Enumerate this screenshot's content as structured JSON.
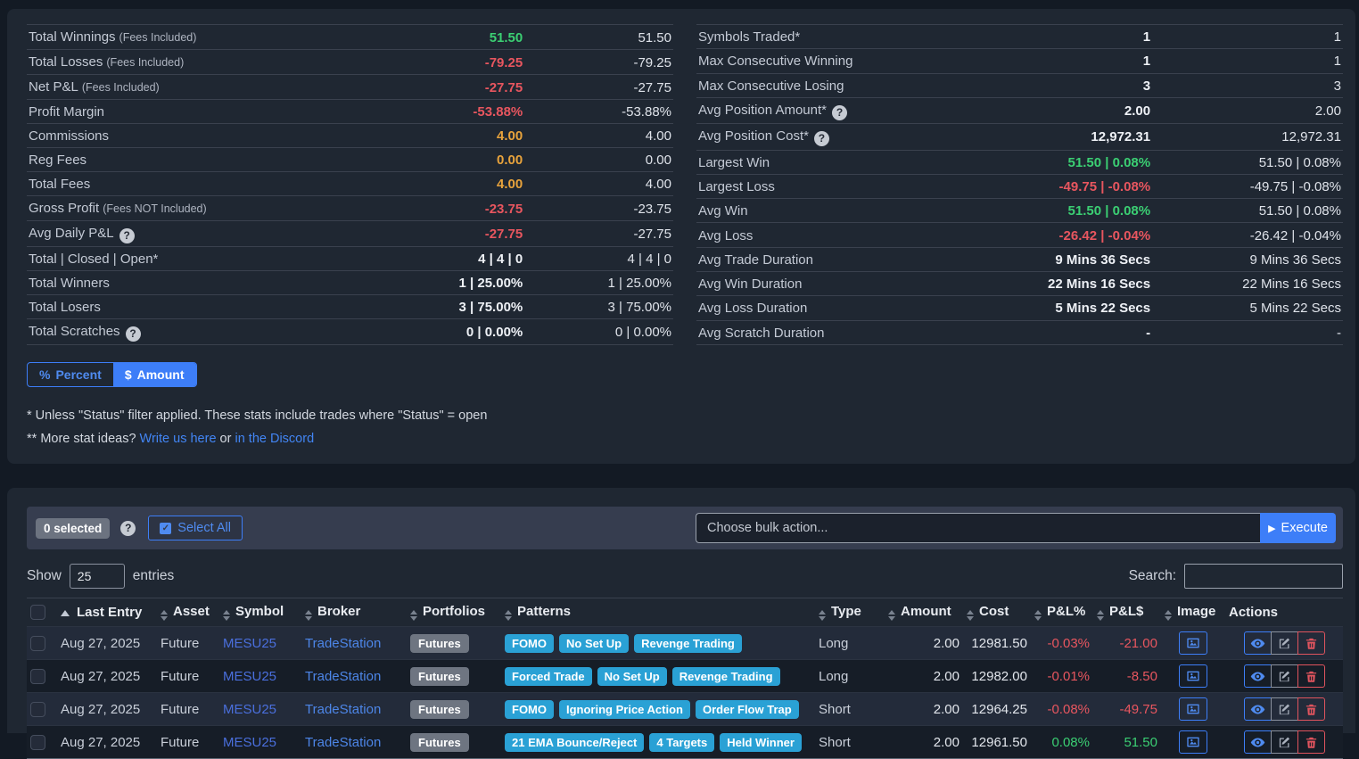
{
  "colors": {
    "green": "#3bcf73",
    "red": "#e8565f",
    "orange": "#e8a33c",
    "accent_blue": "#3d7ef8",
    "pattern_badge_blue": "#2aa1d5",
    "link_blue": "#4285f4",
    "portfolio_badge_gray": "#6e7581"
  },
  "stats": {
    "left": [
      {
        "label": "Total Winnings",
        "note": "(Fees Included)",
        "v1": "51.50",
        "v2": "51.50",
        "cls": "green"
      },
      {
        "label": "Total Losses",
        "note": "(Fees Included)",
        "v1": "-79.25",
        "v2": "-79.25",
        "cls": "red"
      },
      {
        "label": "Net P&L",
        "note": "(Fees Included)",
        "v1": "-27.75",
        "v2": "-27.75",
        "cls": "red"
      },
      {
        "label": "Profit Margin",
        "v1": "-53.88%",
        "v2": "-53.88%",
        "cls": "red"
      },
      {
        "label": "Commissions",
        "v1": "4.00",
        "v2": "4.00",
        "cls": "orange"
      },
      {
        "label": "Reg Fees",
        "v1": "0.00",
        "v2": "0.00",
        "cls": "orange"
      },
      {
        "label": "Total Fees",
        "v1": "4.00",
        "v2": "4.00",
        "cls": "orange"
      },
      {
        "label": "Gross Profit",
        "note": "(Fees NOT Included)",
        "v1": "-23.75",
        "v2": "-23.75",
        "cls": "red"
      },
      {
        "label": "Avg Daily P&L",
        "help": true,
        "v1": "-27.75",
        "v2": "-27.75",
        "cls": "red"
      },
      {
        "label": "Total | Closed | Open*",
        "v1": "4 | 4 | 0",
        "v2": "4 | 4 | 0",
        "cls": "plain"
      },
      {
        "label": "Total Winners",
        "v1": "1 | 25.00%",
        "v2": "1 | 25.00%",
        "cls": "plain"
      },
      {
        "label": "Total Losers",
        "v1": "3 | 75.00%",
        "v2": "3 | 75.00%",
        "cls": "plain"
      },
      {
        "label": "Total Scratches",
        "help": true,
        "v1": "0 | 0.00%",
        "v2": "0 | 0.00%",
        "cls": "plain"
      }
    ],
    "right": [
      {
        "label": "Symbols Traded*",
        "v1": "1",
        "v2": "1",
        "cls": "plain"
      },
      {
        "label": "Max Consecutive Winning",
        "v1": "1",
        "v2": "1",
        "cls": "plain"
      },
      {
        "label": "Max Consecutive Losing",
        "v1": "3",
        "v2": "3",
        "cls": "plain"
      },
      {
        "label": "Avg Position Amount*",
        "help": true,
        "v1": "2.00",
        "v2": "2.00",
        "cls": "plain"
      },
      {
        "label": "Avg Position Cost*",
        "help": true,
        "v1": "12,972.31",
        "v2": "12,972.31",
        "cls": "plain"
      },
      {
        "label": "Largest Win",
        "v1": "51.50 | 0.08%",
        "v2": "51.50 | 0.08%",
        "cls": "green"
      },
      {
        "label": "Largest Loss",
        "v1": "-49.75 | -0.08%",
        "v2": "-49.75 | -0.08%",
        "cls": "red"
      },
      {
        "label": "Avg Win",
        "v1": "51.50 | 0.08%",
        "v2": "51.50 | 0.08%",
        "cls": "green"
      },
      {
        "label": "Avg Loss",
        "v1": "-26.42 | -0.04%",
        "v2": "-26.42 | -0.04%",
        "cls": "red"
      },
      {
        "label": "Avg Trade Duration",
        "v1": "9 Mins 36 Secs",
        "v2": "9 Mins 36 Secs",
        "cls": "plain"
      },
      {
        "label": "Avg Win Duration",
        "v1": "22 Mins 16 Secs",
        "v2": "22 Mins 16 Secs",
        "cls": "plain"
      },
      {
        "label": "Avg Loss Duration",
        "v1": "5 Mins 22 Secs",
        "v2": "5 Mins 22 Secs",
        "cls": "plain"
      },
      {
        "label": "Avg Scratch Duration",
        "v1": "-",
        "v2": "-",
        "cls": "plain"
      }
    ]
  },
  "toggle": {
    "percent_label": "Percent",
    "percent_icon": "%",
    "amount_label": "Amount",
    "amount_icon": "$"
  },
  "footnotes": {
    "line1": "* Unless \"Status\" filter applied. These stats include trades where \"Status\" = open",
    "line2_prefix": "** More stat ideas?",
    "link1": "Write us here",
    "or_text": "or",
    "link2": "in the Discord"
  },
  "bulk": {
    "selected_badge": "0 selected",
    "select_all_label": "Select All",
    "bulk_placeholder": "Choose bulk action...",
    "execute_label": "Execute",
    "execute_icon": "▶"
  },
  "table_controls": {
    "show_label": "Show",
    "page_size": "25",
    "entries_label": "entries",
    "search_label": "Search:",
    "search_value": ""
  },
  "trades_table": {
    "headers": [
      {
        "label": "Last Entry",
        "sort": "asc"
      },
      {
        "label": "Asset",
        "sort": "both"
      },
      {
        "label": "Symbol",
        "sort": "both"
      },
      {
        "label": "Broker",
        "sort": "both"
      },
      {
        "label": "Portfolios",
        "sort": "both"
      },
      {
        "label": "Patterns",
        "sort": "both"
      },
      {
        "label": "Type",
        "sort": "both"
      },
      {
        "label": "Amount",
        "sort": "both",
        "align": "r"
      },
      {
        "label": "Cost",
        "sort": "both",
        "align": "r"
      },
      {
        "label": "P&L%",
        "sort": "both",
        "align": "r"
      },
      {
        "label": "P&L$",
        "sort": "both",
        "align": "r"
      },
      {
        "label": "Image",
        "sort": "both",
        "align": "c"
      },
      {
        "label": "Actions",
        "sort": "none",
        "align": "c"
      }
    ],
    "rows": [
      {
        "date": "Aug 27, 2025",
        "asset": "Future",
        "symbol": "MESU25",
        "broker": "TradeStation",
        "portfolio": "Futures",
        "patterns": [
          "FOMO",
          "No Set Up",
          "Revenge Trading"
        ],
        "type": "Long",
        "amount": "2.00",
        "cost": "12981.50",
        "pl_pct": "-0.03%",
        "pl_usd": "-21.00",
        "pl_cls": "red"
      },
      {
        "date": "Aug 27, 2025",
        "asset": "Future",
        "symbol": "MESU25",
        "broker": "TradeStation",
        "portfolio": "Futures",
        "patterns": [
          "Forced Trade",
          "No Set Up",
          "Revenge Trading"
        ],
        "type": "Long",
        "amount": "2.00",
        "cost": "12982.00",
        "pl_pct": "-0.01%",
        "pl_usd": "-8.50",
        "pl_cls": "red"
      },
      {
        "date": "Aug 27, 2025",
        "asset": "Future",
        "symbol": "MESU25",
        "broker": "TradeStation",
        "portfolio": "Futures",
        "patterns": [
          "FOMO",
          "Ignoring Price Action",
          "Order Flow Trap"
        ],
        "type": "Short",
        "amount": "2.00",
        "cost": "12964.25",
        "pl_pct": "-0.08%",
        "pl_usd": "-49.75",
        "pl_cls": "red"
      },
      {
        "date": "Aug 27, 2025",
        "asset": "Future",
        "symbol": "MESU25",
        "broker": "TradeStation",
        "portfolio": "Futures",
        "patterns": [
          "21 EMA Bounce/Reject",
          "4 Targets",
          "Held Winner"
        ],
        "type": "Short",
        "amount": "2.00",
        "cost": "12961.50",
        "pl_pct": "0.08%",
        "pl_usd": "51.50",
        "pl_cls": "green"
      }
    ]
  }
}
